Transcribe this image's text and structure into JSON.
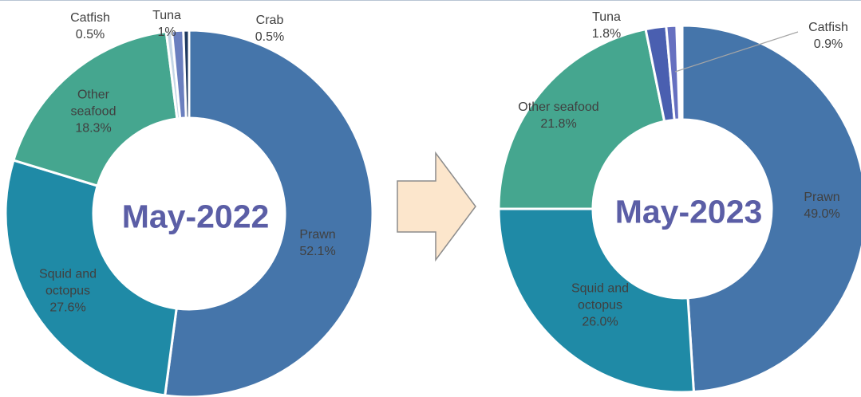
{
  "chart_data": [
    {
      "type": "donut",
      "title": "May-2022",
      "categories": [
        "Prawn",
        "Squid and octopus",
        "Other seafood",
        "Catfish",
        "Tuna",
        "Crab"
      ],
      "values": [
        52.1,
        27.6,
        18.3,
        0.5,
        1,
        0.5
      ],
      "value_labels": [
        "52.1%",
        "27.6%",
        "18.3%",
        "0.5%",
        "1%",
        "0.5%"
      ],
      "colors": [
        "#4575aa",
        "#1f8aa6",
        "#45a68f",
        "#c5d6e6",
        "#6a7fbf",
        "#1f3a60"
      ]
    },
    {
      "type": "donut",
      "title": "May-2023",
      "categories": [
        "Prawn",
        "Squid and octopus",
        "Other seafood",
        "Tuna",
        "Catfish"
      ],
      "values": [
        49.0,
        26.0,
        21.8,
        1.8,
        0.9
      ],
      "value_labels": [
        "49.0%",
        "26.0%",
        "21.8%",
        "1.8%",
        "0.9%"
      ],
      "colors": [
        "#4575aa",
        "#1f8aa6",
        "#45a68f",
        "#4a5fb0",
        "#6670c0"
      ]
    }
  ]
}
